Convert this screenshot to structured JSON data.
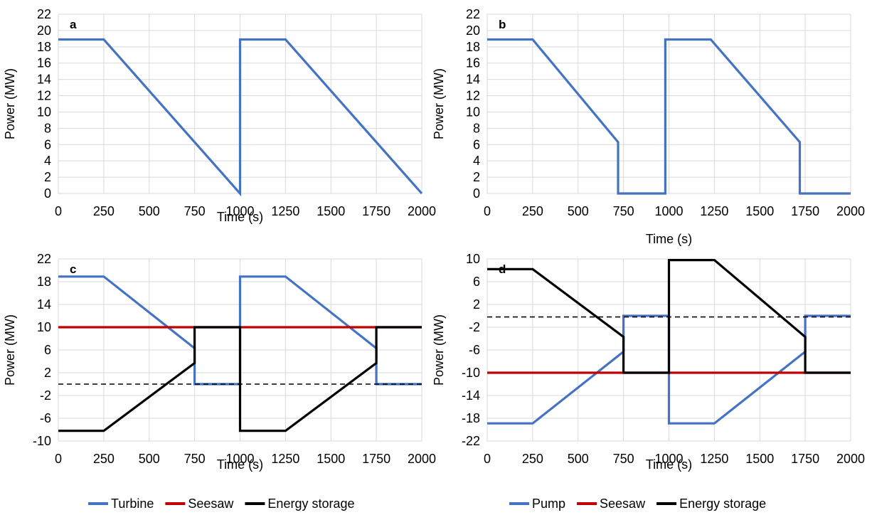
{
  "figure": {
    "colors": {
      "blue": "#4472c4",
      "red": "#c00000",
      "black": "#000000",
      "grid": "#d9d9d9"
    },
    "legends": {
      "left": [
        "Turbine",
        "Seesaw",
        "Energy storage"
      ],
      "right": [
        "Pump",
        "Seesaw",
        "Energy storage"
      ]
    }
  },
  "chart_data": [
    {
      "panel": "a",
      "type": "line",
      "xlabel": "Time (s)",
      "ylabel": "Power (MW)",
      "xlim": [
        0,
        2000
      ],
      "ylim": [
        0,
        22
      ],
      "xticks": [
        0,
        250,
        500,
        750,
        1000,
        1250,
        1500,
        1750,
        2000
      ],
      "yticks": [
        0,
        2,
        4,
        6,
        8,
        10,
        12,
        14,
        16,
        18,
        20,
        22
      ],
      "grid": true,
      "series": [
        {
          "color": "#4472c4",
          "style": "solid",
          "x": [
            0,
            250,
            1000,
            1000,
            1250,
            2000
          ],
          "y": [
            18.9,
            18.9,
            0,
            18.9,
            18.9,
            0
          ]
        }
      ]
    },
    {
      "panel": "b",
      "type": "line",
      "xlabel": "Time (s)",
      "ylabel": "Power (MW)",
      "xlim": [
        0,
        2000
      ],
      "ylim": [
        0,
        22
      ],
      "xticks": [
        0,
        250,
        500,
        750,
        1000,
        1250,
        1500,
        1750,
        2000
      ],
      "yticks": [
        0,
        2,
        4,
        6,
        8,
        10,
        12,
        14,
        16,
        18,
        20,
        22
      ],
      "grid": true,
      "series": [
        {
          "color": "#4472c4",
          "style": "solid",
          "x": [
            0,
            250,
            720,
            720,
            980,
            980,
            1230,
            1720,
            1720,
            2000
          ],
          "y": [
            18.9,
            18.9,
            6.3,
            0,
            0,
            18.9,
            18.9,
            6.3,
            0,
            0
          ]
        }
      ]
    },
    {
      "panel": "c",
      "type": "line",
      "xlabel": "Time (s)",
      "ylabel": "Power (MW)",
      "xlim": [
        0,
        2000
      ],
      "ylim": [
        -10,
        22
      ],
      "xticks": [
        0,
        250,
        500,
        750,
        1000,
        1250,
        1500,
        1750,
        2000
      ],
      "yticks": [
        -10,
        -6,
        -2,
        2,
        6,
        10,
        14,
        18,
        22
      ],
      "grid": true,
      "legend": "bottom",
      "series": [
        {
          "name": "Turbine",
          "color": "#4472c4",
          "style": "solid",
          "x": [
            0,
            250,
            750,
            750,
            1000,
            1000,
            1250,
            1750,
            1750,
            2000
          ],
          "y": [
            18.9,
            18.9,
            6.3,
            0,
            0,
            18.9,
            18.9,
            6.3,
            0,
            0
          ]
        },
        {
          "name": "Seesaw",
          "color": "#c00000",
          "style": "solid",
          "x": [
            0,
            2000
          ],
          "y": [
            10,
            10
          ]
        },
        {
          "name": "Energy storage",
          "color": "#000000",
          "style": "solid",
          "x": [
            0,
            250,
            750,
            750,
            1000,
            1000,
            1250,
            1750,
            1750,
            2000
          ],
          "y": [
            -8.2,
            -8.2,
            3.7,
            10,
            10,
            -8.2,
            -8.2,
            3.7,
            10,
            10
          ]
        },
        {
          "color": "#000000",
          "style": "dashed",
          "x": [
            0,
            2000
          ],
          "y": [
            0,
            0
          ]
        }
      ]
    },
    {
      "panel": "d",
      "type": "line",
      "xlabel": "Time (s)",
      "ylabel": "Power (MW)",
      "xlim": [
        0,
        2000
      ],
      "ylim": [
        -22,
        10
      ],
      "xticks": [
        0,
        250,
        500,
        750,
        1000,
        1250,
        1500,
        1750,
        2000
      ],
      "yticks": [
        -22,
        -18,
        -14,
        -10,
        -6,
        -2,
        2,
        6,
        10
      ],
      "ytick_labels": [
        "-22",
        "-18",
        "-14",
        "-10",
        "-6",
        "-2",
        "2",
        "6",
        "10"
      ],
      "grid": true,
      "legend": "bottom",
      "series": [
        {
          "name": "Pump",
          "color": "#4472c4",
          "style": "solid",
          "x": [
            0,
            250,
            750,
            750,
            1000,
            1000,
            1250,
            1750,
            1750,
            2000
          ],
          "y": [
            -18.9,
            -18.9,
            -6.3,
            0,
            0,
            -18.9,
            -18.9,
            -6.3,
            0,
            0
          ]
        },
        {
          "name": "Seesaw",
          "color": "#c00000",
          "style": "solid",
          "x": [
            0,
            2000
          ],
          "y": [
            -10,
            -10
          ]
        },
        {
          "name": "Energy storage",
          "color": "#000000",
          "style": "solid",
          "x": [
            0,
            250,
            750,
            750,
            1000,
            1000,
            1250,
            1750,
            1750,
            2000
          ],
          "y": [
            8.2,
            8.2,
            -3.7,
            -10,
            -10,
            9.8,
            9.8,
            -3.7,
            -10,
            -10
          ]
        },
        {
          "color": "#000000",
          "style": "dashed",
          "x": [
            0,
            2000
          ],
          "y": [
            -0.2,
            -0.2
          ]
        }
      ]
    }
  ]
}
